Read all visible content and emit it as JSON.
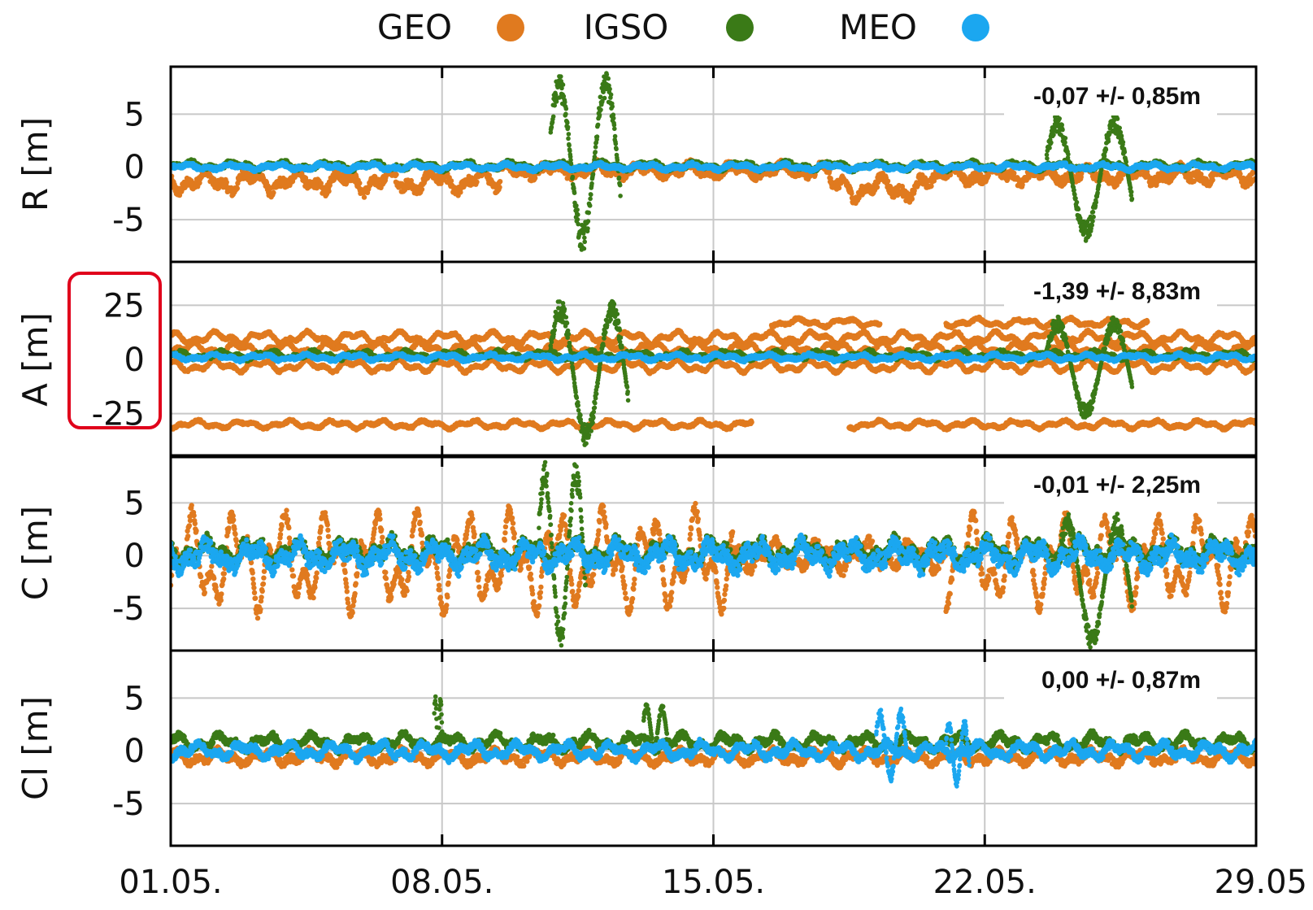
{
  "chart_data": {
    "type": "scatter",
    "legend": {
      "placement": "top-center",
      "entries": [
        {
          "label": "GEO",
          "color": "#E07A1F"
        },
        {
          "label": "IGSO",
          "color": "#3A7A17"
        },
        {
          "label": "MEO",
          "color": "#1BA7F0"
        }
      ]
    },
    "x_ticks": [
      "01.05.",
      "08.05.",
      "15.05.",
      "22.05.",
      "29.05"
    ],
    "x_range_days": [
      1,
      29
    ],
    "grid": true,
    "highlight": {
      "panel": 1,
      "target": "y-axis tick labels",
      "color": "#E0001B"
    },
    "panels": [
      {
        "ylabel": "R [m]",
        "ylim": [
          -9,
          9.5
        ],
        "yticks": [
          5,
          0,
          -5
        ],
        "yticklabels": [
          "5",
          "0",
          "-5"
        ],
        "stat": "-0,07 +/- 0,85m",
        "series": [
          {
            "name": "GEO",
            "noise": 0.9,
            "tracks": [
              {
                "offset": -1.4,
                "amp": 1.1,
                "from": 1,
                "to": 9.5
              },
              {
                "offset": -0.3,
                "amp": 0.6,
                "from": 9.5,
                "to": 18
              },
              {
                "offset": -2.0,
                "amp": 1.2,
                "from": 18,
                "to": 20.5
              },
              {
                "offset": -0.8,
                "amp": 0.8,
                "from": 20.5,
                "to": 29
              }
            ]
          },
          {
            "name": "IGSO",
            "noise": 0.4,
            "tracks": [
              {
                "offset": 0.1,
                "amp": 0.4,
                "from": 1,
                "to": 29
              }
            ],
            "excursions": [
              {
                "from": 10.8,
                "to": 12.6,
                "min": -8,
                "max": 9
              },
              {
                "from": 23.6,
                "to": 25.8,
                "min": -7,
                "max": 5
              }
            ]
          },
          {
            "name": "MEO",
            "noise": 0.35,
            "tracks": [
              {
                "offset": 0.0,
                "amp": 0.3,
                "from": 1,
                "to": 29
              }
            ]
          }
        ]
      },
      {
        "ylabel": "A [m]",
        "ylim": [
          -45,
          45
        ],
        "yticks": [
          25,
          0,
          -25
        ],
        "yticklabels": [
          "25",
          "0",
          "-25"
        ],
        "stat": "-1,39 +/- 8,83m",
        "series": [
          {
            "name": "GEO",
            "noise": 1.2,
            "tracks": [
              {
                "offset": 10,
                "amp": 3,
                "from": 1,
                "to": 29
              },
              {
                "offset": 5,
                "amp": 3,
                "from": 1,
                "to": 29
              },
              {
                "offset": -3,
                "amp": 3,
                "from": 1,
                "to": 29
              },
              {
                "offset": -30,
                "amp": 2,
                "from": 1,
                "to": 16
              },
              {
                "offset": -30,
                "amp": 2,
                "from": 18.5,
                "to": 29
              },
              {
                "offset": 17,
                "amp": 2,
                "from": 16.5,
                "to": 19.3
              },
              {
                "offset": 17,
                "amp": 2,
                "from": 21,
                "to": 26.2
              }
            ]
          },
          {
            "name": "IGSO",
            "noise": 1.5,
            "tracks": [
              {
                "offset": 2,
                "amp": 2,
                "from": 1,
                "to": 29
              }
            ],
            "excursions": [
              {
                "from": 10.8,
                "to": 12.8,
                "min": -40,
                "max": 28
              },
              {
                "from": 23.6,
                "to": 25.8,
                "min": -28,
                "max": 20
              }
            ]
          },
          {
            "name": "MEO",
            "noise": 1.5,
            "tracks": [
              {
                "offset": 1,
                "amp": 1.5,
                "from": 1,
                "to": 29
              }
            ]
          }
        ]
      },
      {
        "ylabel": "C [m]",
        "ylim": [
          -9,
          9.5
        ],
        "yticks": [
          5,
          0,
          -5
        ],
        "yticklabels": [
          "5",
          "0",
          "-5"
        ],
        "stat": "-0,01 +/- 2,25m",
        "series": [
          {
            "name": "GEO",
            "noise": 1.0,
            "tracks": [
              {
                "offset": -0.5,
                "amp": 5,
                "from": 1,
                "to": 15.5
              },
              {
                "offset": 0.0,
                "amp": 1.5,
                "from": 15.5,
                "to": 21
              },
              {
                "offset": -0.5,
                "amp": 4.5,
                "from": 21,
                "to": 29
              }
            ]
          },
          {
            "name": "IGSO",
            "noise": 1.4,
            "tracks": [
              {
                "offset": 0.3,
                "amp": 1.2,
                "from": 1,
                "to": 29
              }
            ],
            "excursions": [
              {
                "from": 10.5,
                "to": 11.7,
                "min": -9,
                "max": 9
              },
              {
                "from": 23.9,
                "to": 25.8,
                "min": -9,
                "max": 4
              }
            ]
          },
          {
            "name": "MEO",
            "noise": 1.5,
            "tracks": [
              {
                "offset": 0.0,
                "amp": 1.3,
                "from": 1,
                "to": 29
              }
            ]
          }
        ]
      },
      {
        "ylabel": "Cl [m]",
        "ylim": [
          -9,
          9.5
        ],
        "yticks": [
          5,
          0,
          -5
        ],
        "yticklabels": [
          "5",
          "0",
          "-5"
        ],
        "stat": "0,00 +/- 0,87m",
        "series": [
          {
            "name": "GEO",
            "noise": 0.7,
            "tracks": [
              {
                "offset": -0.6,
                "amp": 0.7,
                "from": 1,
                "to": 29
              }
            ]
          },
          {
            "name": "IGSO",
            "noise": 0.7,
            "tracks": [
              {
                "offset": 0.8,
                "amp": 0.8,
                "from": 1,
                "to": 29
              }
            ],
            "excursions": [
              {
                "from": 7.8,
                "to": 8.0,
                "min": 0,
                "max": 5.5
              },
              {
                "from": 13.2,
                "to": 13.8,
                "min": 0,
                "max": 4.5
              }
            ]
          },
          {
            "name": "MEO",
            "noise": 0.7,
            "tracks": [
              {
                "offset": 0.0,
                "amp": 0.8,
                "from": 1,
                "to": 29
              }
            ],
            "excursions": [
              {
                "from": 19.2,
                "to": 20.0,
                "min": -3,
                "max": 4
              },
              {
                "from": 21.0,
                "to": 21.6,
                "min": -3.5,
                "max": 3
              }
            ]
          }
        ]
      }
    ]
  }
}
